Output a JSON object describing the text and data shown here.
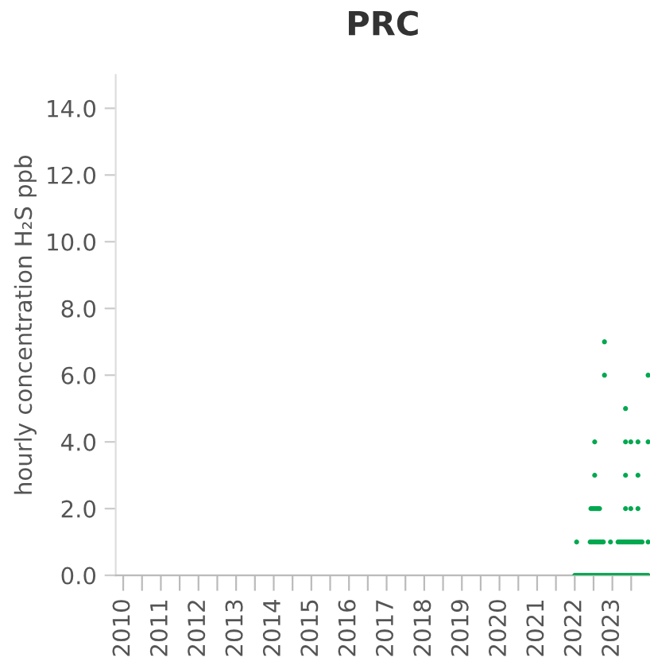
{
  "chart_data": {
    "type": "scatter",
    "title": "PRC",
    "ylabel": "hourly concentration H₂S ppb",
    "xlim": [
      2009.8,
      2024.0
    ],
    "ylim": [
      0,
      15
    ],
    "xticks": [
      {
        "value": 2010,
        "label": "2010"
      },
      {
        "value": 2010.5,
        "label": null
      },
      {
        "value": 2011,
        "label": "2011"
      },
      {
        "value": 2011.5,
        "label": null
      },
      {
        "value": 2012,
        "label": "2012"
      },
      {
        "value": 2012.5,
        "label": null
      },
      {
        "value": 2013,
        "label": "2013"
      },
      {
        "value": 2013.5,
        "label": null
      },
      {
        "value": 2014,
        "label": "2014"
      },
      {
        "value": 2014.5,
        "label": null
      },
      {
        "value": 2015,
        "label": "2015"
      },
      {
        "value": 2015.5,
        "label": null
      },
      {
        "value": 2016,
        "label": "2016"
      },
      {
        "value": 2016.5,
        "label": null
      },
      {
        "value": 2017,
        "label": "2017"
      },
      {
        "value": 2017.5,
        "label": null
      },
      {
        "value": 2018,
        "label": "2018"
      },
      {
        "value": 2018.5,
        "label": null
      },
      {
        "value": 2019,
        "label": "2019"
      },
      {
        "value": 2019.5,
        "label": null
      },
      {
        "value": 2020,
        "label": "2020"
      },
      {
        "value": 2020.5,
        "label": null
      },
      {
        "value": 2021,
        "label": "2021"
      },
      {
        "value": 2021.5,
        "label": null
      },
      {
        "value": 2022,
        "label": "2022"
      },
      {
        "value": 2022.5,
        "label": null
      },
      {
        "value": 2023,
        "label": "2023"
      },
      {
        "value": 2023.5,
        "label": null
      }
    ],
    "yticks": [
      {
        "value": 0,
        "label": "0.0"
      },
      {
        "value": 2,
        "label": "2.0"
      },
      {
        "value": 4,
        "label": "4.0"
      },
      {
        "value": 6,
        "label": "6.0"
      },
      {
        "value": 8,
        "label": "8.0"
      },
      {
        "value": 10,
        "label": "10.0"
      },
      {
        "value": 12,
        "label": "12.0"
      },
      {
        "value": 14,
        "label": "14.0"
      }
    ],
    "grid": false,
    "marker": "circle",
    "series": [
      {
        "color": "#00a84f",
        "x": [
          2022.0,
          2022.05,
          2022.1,
          2022.15,
          2022.2,
          2022.25,
          2022.3,
          2022.35,
          2022.4,
          2022.45,
          2022.5,
          2022.55,
          2022.6,
          2022.65,
          2022.7,
          2022.75,
          2022.8,
          2022.85,
          2022.9,
          2022.95,
          2023.0,
          2023.05,
          2023.1,
          2023.15,
          2023.2,
          2023.25,
          2023.3,
          2023.35,
          2023.4,
          2023.45,
          2023.5,
          2023.55,
          2023.6,
          2023.65,
          2023.7,
          2023.75,
          2023.8,
          2023.85,
          2023.9,
          2023.95,
          2022.05,
          2022.41,
          2022.45,
          2022.49,
          2022.53,
          2022.57,
          2022.61,
          2022.65,
          2022.69,
          2022.73,
          2022.76,
          2022.95,
          2023.15,
          2023.19,
          2023.23,
          2023.27,
          2023.31,
          2023.35,
          2023.39,
          2023.43,
          2023.47,
          2023.51,
          2023.55,
          2023.59,
          2023.63,
          2023.67,
          2023.71,
          2023.75,
          2023.79,
          2023.95,
          2022.43,
          2022.47,
          2022.51,
          2022.55,
          2022.59,
          2022.63,
          2022.66,
          2023.35,
          2023.49,
          2023.68,
          2022.53,
          2023.35,
          2023.68,
          2022.53,
          2023.35,
          2023.49,
          2023.68,
          2023.95,
          2023.35,
          2022.79,
          2023.95,
          2022.79
        ],
        "values": [
          0,
          0,
          0,
          0,
          0,
          0,
          0,
          0,
          0,
          0,
          0,
          0,
          0,
          0,
          0,
          0,
          0,
          0,
          0,
          0,
          0,
          0,
          0,
          0,
          0,
          0,
          0,
          0,
          0,
          0,
          0,
          0,
          0,
          0,
          0,
          0,
          0,
          0,
          0,
          0,
          1,
          1,
          1,
          1,
          1,
          1,
          1,
          1,
          1,
          1,
          1,
          1,
          1,
          1,
          1,
          1,
          1,
          1,
          1,
          1,
          1,
          1,
          1,
          1,
          1,
          1,
          1,
          1,
          1,
          1,
          2,
          2,
          2,
          2,
          2,
          2,
          2,
          2,
          2,
          2,
          3,
          3,
          3,
          4,
          4,
          4,
          4,
          4,
          5,
          6,
          6,
          7
        ]
      }
    ]
  }
}
